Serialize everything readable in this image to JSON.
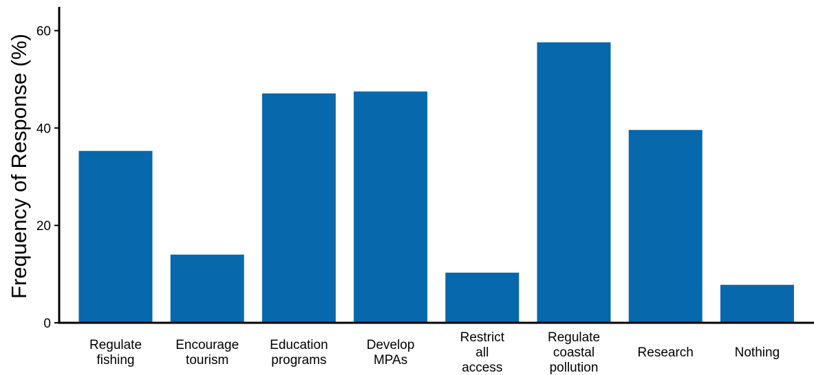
{
  "chart_data": {
    "type": "bar",
    "categories": [
      [
        "Regulate",
        "fishing"
      ],
      [
        "Encourage",
        "tourism"
      ],
      [
        "Education",
        "programs"
      ],
      [
        "Develop",
        "MPAs"
      ],
      [
        "Restrict",
        "all",
        "access"
      ],
      [
        "Regulate",
        "coastal",
        "pollution"
      ],
      [
        "Research"
      ],
      [
        "Nothing"
      ]
    ],
    "values": [
      35.3,
      14.0,
      47.1,
      47.5,
      10.3,
      57.6,
      39.6,
      7.8
    ],
    "title": "",
    "xlabel": "",
    "ylabel": "Frequency of Response (%)",
    "ylim": [
      0,
      65
    ],
    "yticks": [
      0,
      20,
      40,
      60
    ],
    "grid": false,
    "legend": "none",
    "bar_color": "#0868ac"
  }
}
